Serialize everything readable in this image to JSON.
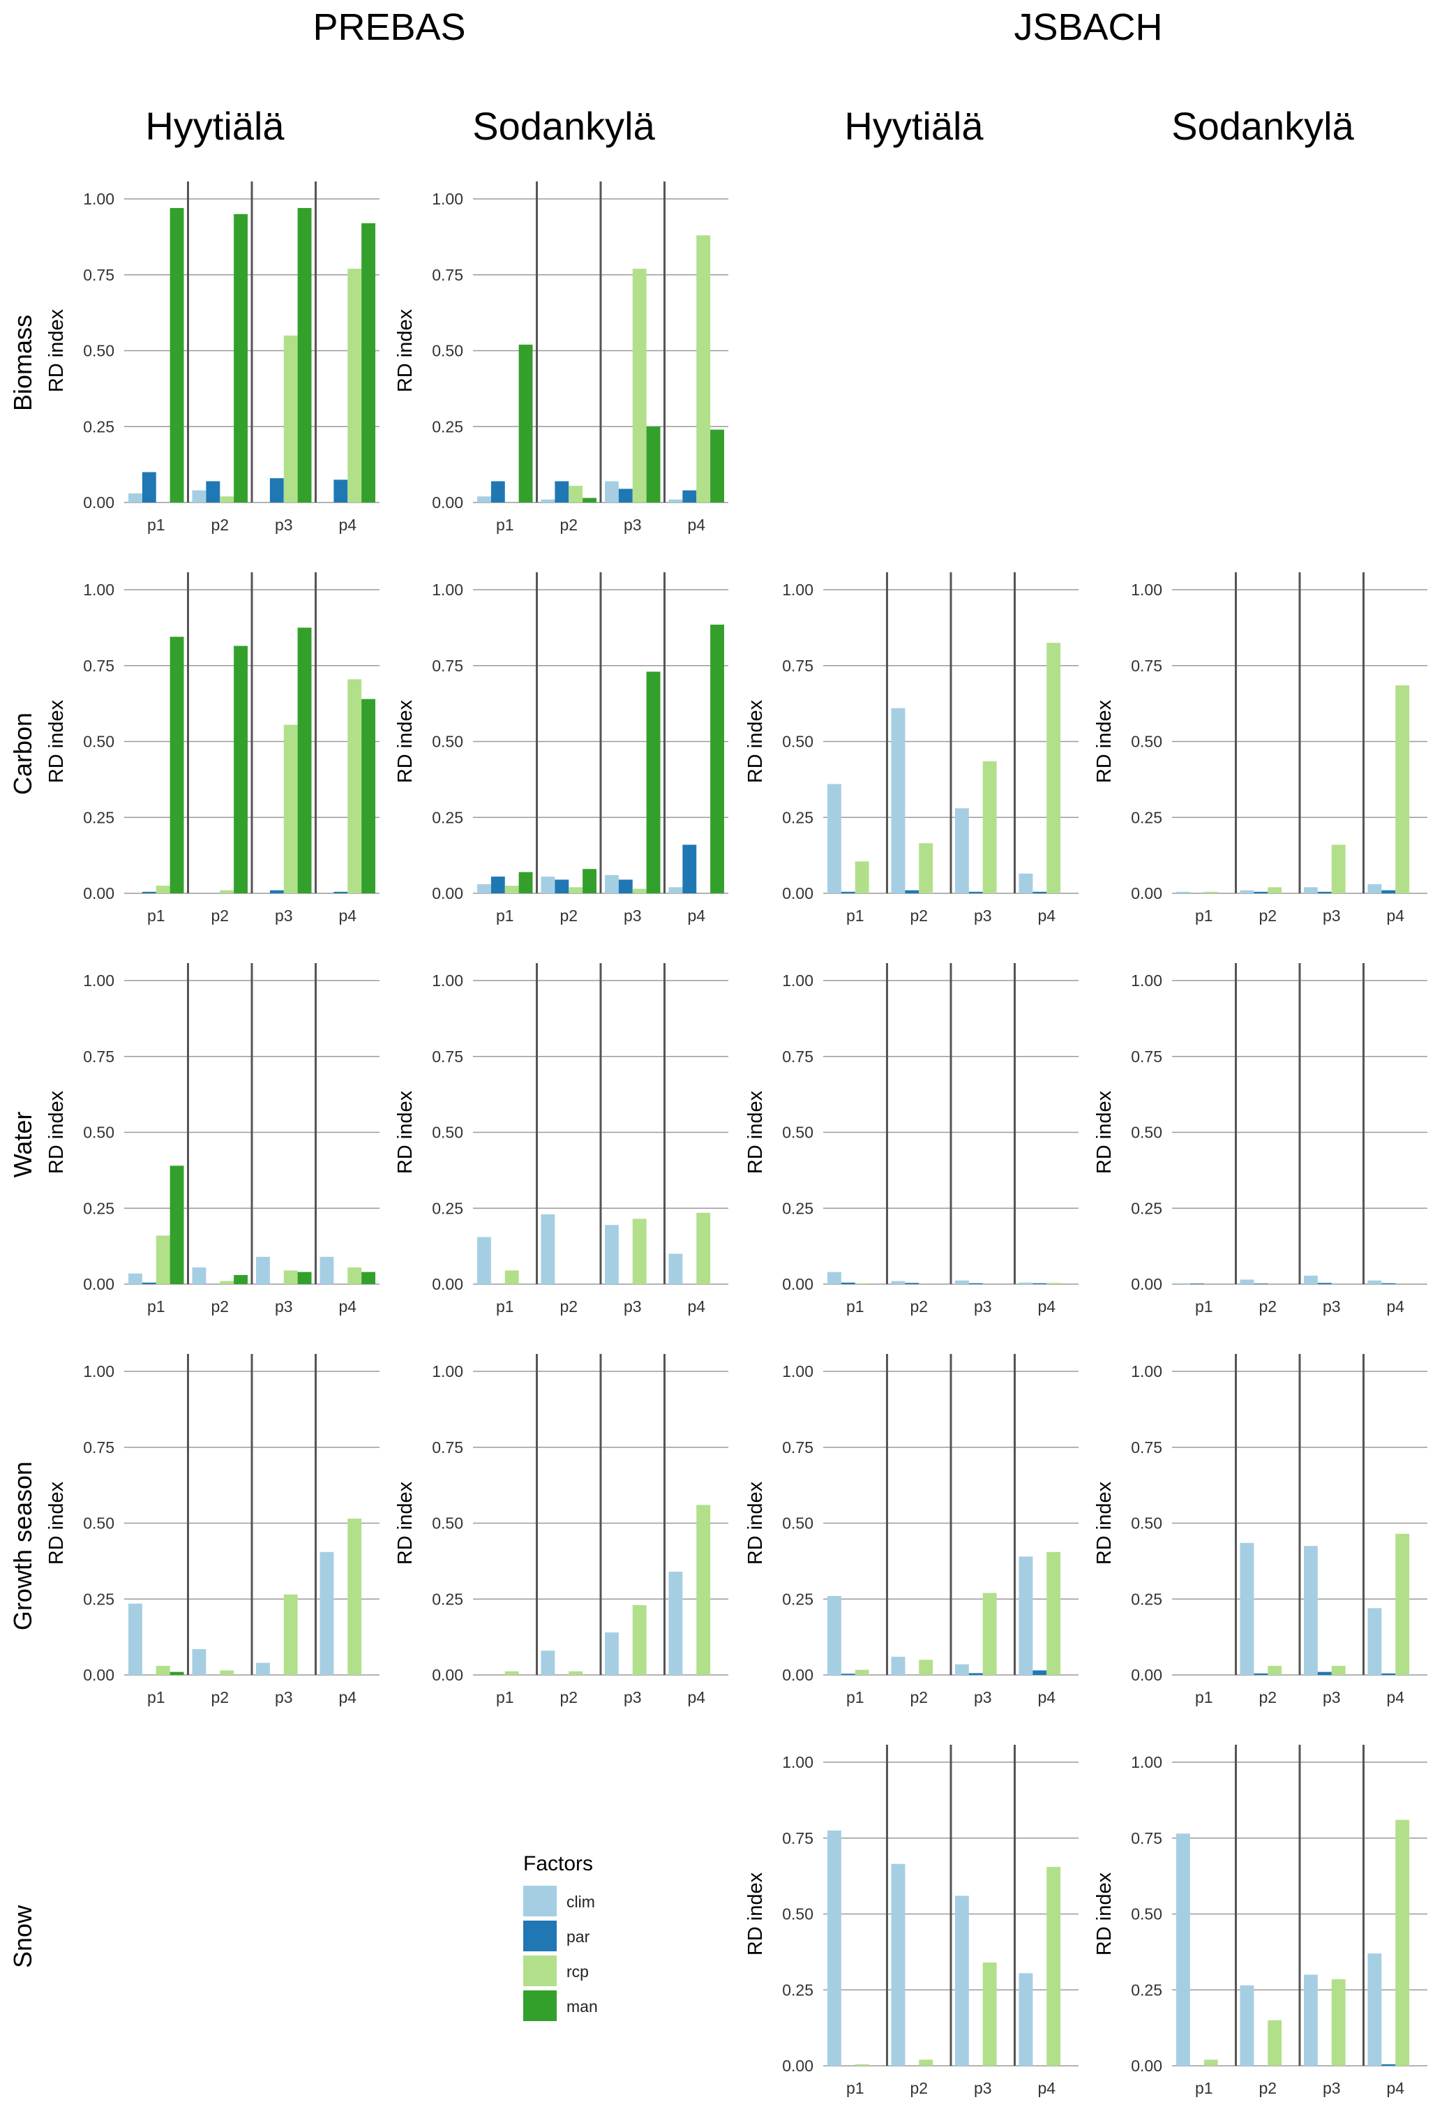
{
  "models": [
    "PREBAS",
    "JSBACH"
  ],
  "sites": [
    "Hyytiälä",
    "Sodankylä",
    "Hyytiälä",
    "Sodankylä"
  ],
  "rows": [
    "Biomass",
    "Carbon",
    "Water",
    "Growth season",
    "Snow"
  ],
  "ylabel": "RD index",
  "legend": {
    "title": "Factors",
    "items": [
      {
        "label": "clim",
        "color": "#a6cee3"
      },
      {
        "label": "par",
        "color": "#1f78b4"
      },
      {
        "label": "rcp",
        "color": "#b2df8a"
      },
      {
        "label": "man",
        "color": "#33a02c"
      }
    ]
  },
  "chart_data": [
    {
      "type": "bar",
      "model": "PREBAS",
      "site": "Hyytiälä",
      "variable": "Biomass",
      "categories": [
        "p1",
        "p2",
        "p3",
        "p4"
      ],
      "ylim": [
        0,
        1
      ],
      "yticks": [
        "0.00",
        "0.25",
        "0.50",
        "0.75",
        "1.00"
      ],
      "series": [
        {
          "name": "clim",
          "values": [
            0.03,
            0.04,
            0.0,
            0.0
          ]
        },
        {
          "name": "par",
          "values": [
            0.1,
            0.07,
            0.08,
            0.075
          ]
        },
        {
          "name": "rcp",
          "values": [
            0.0,
            0.02,
            0.55,
            0.77
          ]
        },
        {
          "name": "man",
          "values": [
            0.97,
            0.95,
            0.97,
            0.92
          ]
        }
      ]
    },
    {
      "type": "bar",
      "model": "PREBAS",
      "site": "Sodankylä",
      "variable": "Biomass",
      "categories": [
        "p1",
        "p2",
        "p3",
        "p4"
      ],
      "ylim": [
        0,
        1
      ],
      "yticks": [
        "0.00",
        "0.25",
        "0.50",
        "0.75",
        "1.00"
      ],
      "series": [
        {
          "name": "clim",
          "values": [
            0.02,
            0.01,
            0.07,
            0.01
          ]
        },
        {
          "name": "par",
          "values": [
            0.07,
            0.07,
            0.045,
            0.04
          ]
        },
        {
          "name": "rcp",
          "values": [
            0.0,
            0.055,
            0.77,
            0.88
          ]
        },
        {
          "name": "man",
          "values": [
            0.52,
            0.015,
            0.25,
            0.24
          ]
        }
      ]
    },
    {
      "type": "bar",
      "model": "PREBAS",
      "site": "Hyytiälä",
      "variable": "Carbon",
      "categories": [
        "p1",
        "p2",
        "p3",
        "p4"
      ],
      "ylim": [
        0,
        1
      ],
      "yticks": [
        "0.00",
        "0.25",
        "0.50",
        "0.75",
        "1.00"
      ],
      "series": [
        {
          "name": "clim",
          "values": [
            0.0,
            0.0,
            0.0,
            0.0
          ]
        },
        {
          "name": "par",
          "values": [
            0.005,
            0.0,
            0.01,
            0.005
          ]
        },
        {
          "name": "rcp",
          "values": [
            0.025,
            0.01,
            0.555,
            0.705
          ]
        },
        {
          "name": "man",
          "values": [
            0.845,
            0.815,
            0.875,
            0.64
          ]
        }
      ]
    },
    {
      "type": "bar",
      "model": "PREBAS",
      "site": "Sodankylä",
      "variable": "Carbon",
      "categories": [
        "p1",
        "p2",
        "p3",
        "p4"
      ],
      "ylim": [
        0,
        1
      ],
      "yticks": [
        "0.00",
        "0.25",
        "0.50",
        "0.75",
        "1.00"
      ],
      "series": [
        {
          "name": "clim",
          "values": [
            0.03,
            0.055,
            0.06,
            0.02
          ]
        },
        {
          "name": "par",
          "values": [
            0.055,
            0.045,
            0.045,
            0.16
          ]
        },
        {
          "name": "rcp",
          "values": [
            0.025,
            0.02,
            0.015,
            0.0
          ]
        },
        {
          "name": "man",
          "values": [
            0.07,
            0.08,
            0.73,
            0.885
          ]
        }
      ]
    },
    {
      "type": "bar",
      "model": "JSBACH",
      "site": "Hyytiälä",
      "variable": "Carbon",
      "categories": [
        "p1",
        "p2",
        "p3",
        "p4"
      ],
      "ylim": [
        0,
        1
      ],
      "yticks": [
        "0.00",
        "0.25",
        "0.50",
        "0.75",
        "1.00"
      ],
      "series": [
        {
          "name": "clim",
          "values": [
            0.36,
            0.61,
            0.28,
            0.065
          ]
        },
        {
          "name": "par",
          "values": [
            0.005,
            0.01,
            0.005,
            0.005
          ]
        },
        {
          "name": "rcp",
          "values": [
            0.105,
            0.165,
            0.435,
            0.825
          ]
        },
        {
          "name": "man",
          "values": [
            0,
            0,
            0,
            0
          ]
        }
      ]
    },
    {
      "type": "bar",
      "model": "JSBACH",
      "site": "Sodankylä",
      "variable": "Carbon",
      "categories": [
        "p1",
        "p2",
        "p3",
        "p4"
      ],
      "ylim": [
        0,
        1
      ],
      "yticks": [
        "0.00",
        "0.25",
        "0.50",
        "0.75",
        "1.00"
      ],
      "series": [
        {
          "name": "clim",
          "values": [
            0.005,
            0.01,
            0.02,
            0.03
          ]
        },
        {
          "name": "par",
          "values": [
            0.0,
            0.005,
            0.005,
            0.01
          ]
        },
        {
          "name": "rcp",
          "values": [
            0.005,
            0.02,
            0.16,
            0.685
          ]
        },
        {
          "name": "man",
          "values": [
            0,
            0,
            0,
            0
          ]
        }
      ]
    },
    {
      "type": "bar",
      "model": "PREBAS",
      "site": "Hyytiälä",
      "variable": "Water",
      "categories": [
        "p1",
        "p2",
        "p3",
        "p4"
      ],
      "ylim": [
        0,
        1
      ],
      "yticks": [
        "0.00",
        "0.25",
        "0.50",
        "0.75",
        "1.00"
      ],
      "series": [
        {
          "name": "clim",
          "values": [
            0.035,
            0.055,
            0.09,
            0.09
          ]
        },
        {
          "name": "par",
          "values": [
            0.005,
            0.0,
            0.0,
            0.0
          ]
        },
        {
          "name": "rcp",
          "values": [
            0.16,
            0.01,
            0.045,
            0.055
          ]
        },
        {
          "name": "man",
          "values": [
            0.39,
            0.03,
            0.04,
            0.04
          ]
        }
      ]
    },
    {
      "type": "bar",
      "model": "PREBAS",
      "site": "Sodankylä",
      "variable": "Water",
      "categories": [
        "p1",
        "p2",
        "p3",
        "p4"
      ],
      "ylim": [
        0,
        1
      ],
      "yticks": [
        "0.00",
        "0.25",
        "0.50",
        "0.75",
        "1.00"
      ],
      "series": [
        {
          "name": "clim",
          "values": [
            0.155,
            0.23,
            0.195,
            0.1
          ]
        },
        {
          "name": "par",
          "values": [
            0.0,
            0.0,
            0.0,
            0.0
          ]
        },
        {
          "name": "rcp",
          "values": [
            0.045,
            0.0,
            0.215,
            0.235
          ]
        },
        {
          "name": "man",
          "values": [
            0.0,
            0.0,
            0.0,
            0.0
          ]
        }
      ]
    },
    {
      "type": "bar",
      "model": "JSBACH",
      "site": "Hyytiälä",
      "variable": "Water",
      "categories": [
        "p1",
        "p2",
        "p3",
        "p4"
      ],
      "ylim": [
        0,
        1
      ],
      "yticks": [
        "0.00",
        "0.25",
        "0.50",
        "0.75",
        "1.00"
      ],
      "series": [
        {
          "name": "clim",
          "values": [
            0.04,
            0.01,
            0.012,
            0.005
          ]
        },
        {
          "name": "par",
          "values": [
            0.005,
            0.004,
            0.003,
            0.003
          ]
        },
        {
          "name": "rcp",
          "values": [
            0.003,
            0.0,
            0.0,
            0.004
          ]
        },
        {
          "name": "man",
          "values": [
            0,
            0,
            0,
            0
          ]
        }
      ]
    },
    {
      "type": "bar",
      "model": "JSBACH",
      "site": "Sodankylä",
      "variable": "Water",
      "categories": [
        "p1",
        "p2",
        "p3",
        "p4"
      ],
      "ylim": [
        0,
        1
      ],
      "yticks": [
        "0.00",
        "0.25",
        "0.50",
        "0.75",
        "1.00"
      ],
      "series": [
        {
          "name": "clim",
          "values": [
            0.003,
            0.015,
            0.028,
            0.012
          ]
        },
        {
          "name": "par",
          "values": [
            0.002,
            0.002,
            0.004,
            0.003
          ]
        },
        {
          "name": "rcp",
          "values": [
            0.0,
            0.0,
            0.0,
            0.0
          ]
        },
        {
          "name": "man",
          "values": [
            0,
            0,
            0,
            0
          ]
        }
      ]
    },
    {
      "type": "bar",
      "model": "PREBAS",
      "site": "Hyytiälä",
      "variable": "Growth season",
      "categories": [
        "p1",
        "p2",
        "p3",
        "p4"
      ],
      "ylim": [
        0,
        1
      ],
      "yticks": [
        "0.00",
        "0.25",
        "0.50",
        "0.75",
        "1.00"
      ],
      "series": [
        {
          "name": "clim",
          "values": [
            0.235,
            0.085,
            0.04,
            0.405
          ]
        },
        {
          "name": "par",
          "values": [
            0.0,
            0.0,
            0.0,
            0.0
          ]
        },
        {
          "name": "rcp",
          "values": [
            0.03,
            0.015,
            0.265,
            0.515
          ]
        },
        {
          "name": "man",
          "values": [
            0.01,
            0.0,
            0.0,
            0.0
          ]
        }
      ]
    },
    {
      "type": "bar",
      "model": "PREBAS",
      "site": "Sodankylä",
      "variable": "Growth season",
      "categories": [
        "p1",
        "p2",
        "p3",
        "p4"
      ],
      "ylim": [
        0,
        1
      ],
      "yticks": [
        "0.00",
        "0.25",
        "0.50",
        "0.75",
        "1.00"
      ],
      "series": [
        {
          "name": "clim",
          "values": [
            0.0,
            0.08,
            0.14,
            0.34
          ]
        },
        {
          "name": "par",
          "values": [
            0.0,
            0.0,
            0.0,
            0.0
          ]
        },
        {
          "name": "rcp",
          "values": [
            0.012,
            0.012,
            0.23,
            0.56
          ]
        },
        {
          "name": "man",
          "values": [
            0.0,
            0.0,
            0.0,
            0.0
          ]
        }
      ]
    },
    {
      "type": "bar",
      "model": "JSBACH",
      "site": "Hyytiälä",
      "variable": "Growth season",
      "categories": [
        "p1",
        "p2",
        "p3",
        "p4"
      ],
      "ylim": [
        0,
        1
      ],
      "yticks": [
        "0.00",
        "0.25",
        "0.50",
        "0.75",
        "1.00"
      ],
      "series": [
        {
          "name": "clim",
          "values": [
            0.26,
            0.06,
            0.035,
            0.39
          ]
        },
        {
          "name": "par",
          "values": [
            0.004,
            0.0,
            0.006,
            0.015
          ]
        },
        {
          "name": "rcp",
          "values": [
            0.017,
            0.05,
            0.27,
            0.405
          ]
        },
        {
          "name": "man",
          "values": [
            0,
            0,
            0,
            0
          ]
        }
      ]
    },
    {
      "type": "bar",
      "model": "JSBACH",
      "site": "Sodankylä",
      "variable": "Growth season",
      "categories": [
        "p1",
        "p2",
        "p3",
        "p4"
      ],
      "ylim": [
        0,
        1
      ],
      "yticks": [
        "0.00",
        "0.25",
        "0.50",
        "0.75",
        "1.00"
      ],
      "series": [
        {
          "name": "clim",
          "values": [
            0.0,
            0.435,
            0.425,
            0.22
          ]
        },
        {
          "name": "par",
          "values": [
            0.0,
            0.005,
            0.01,
            0.005
          ]
        },
        {
          "name": "rcp",
          "values": [
            0.0,
            0.03,
            0.03,
            0.465
          ]
        },
        {
          "name": "man",
          "values": [
            0,
            0,
            0,
            0
          ]
        }
      ]
    },
    {
      "type": "bar",
      "model": "JSBACH",
      "site": "Hyytiälä",
      "variable": "Snow",
      "categories": [
        "p1",
        "p2",
        "p3",
        "p4"
      ],
      "ylim": [
        0,
        1
      ],
      "yticks": [
        "0.00",
        "0.25",
        "0.50",
        "0.75",
        "1.00"
      ],
      "series": [
        {
          "name": "clim",
          "values": [
            0.775,
            0.665,
            0.56,
            0.305
          ]
        },
        {
          "name": "par",
          "values": [
            0.0,
            0.0,
            0.0,
            0.0
          ]
        },
        {
          "name": "rcp",
          "values": [
            0.005,
            0.02,
            0.34,
            0.655
          ]
        },
        {
          "name": "man",
          "values": [
            0,
            0,
            0,
            0
          ]
        }
      ]
    },
    {
      "type": "bar",
      "model": "JSBACH",
      "site": "Sodankylä",
      "variable": "Snow",
      "categories": [
        "p1",
        "p2",
        "p3",
        "p4"
      ],
      "ylim": [
        0,
        1
      ],
      "yticks": [
        "0.00",
        "0.25",
        "0.50",
        "0.75",
        "1.00"
      ],
      "series": [
        {
          "name": "clim",
          "values": [
            0.765,
            0.265,
            0.3,
            0.37
          ]
        },
        {
          "name": "par",
          "values": [
            0.0,
            0.0,
            0.0,
            0.005
          ]
        },
        {
          "name": "rcp",
          "values": [
            0.02,
            0.15,
            0.285,
            0.81
          ]
        },
        {
          "name": "man",
          "values": [
            0,
            0,
            0,
            0
          ]
        }
      ]
    }
  ]
}
